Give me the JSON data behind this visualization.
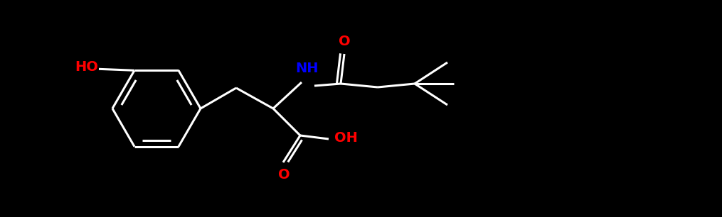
{
  "background_color": "#000000",
  "white": "#ffffff",
  "red": "#ff0000",
  "blue": "#0000ff",
  "bw": 2.2,
  "fs": 13,
  "xlim": [
    0,
    10.15
  ],
  "ylim": [
    0,
    3.06
  ]
}
